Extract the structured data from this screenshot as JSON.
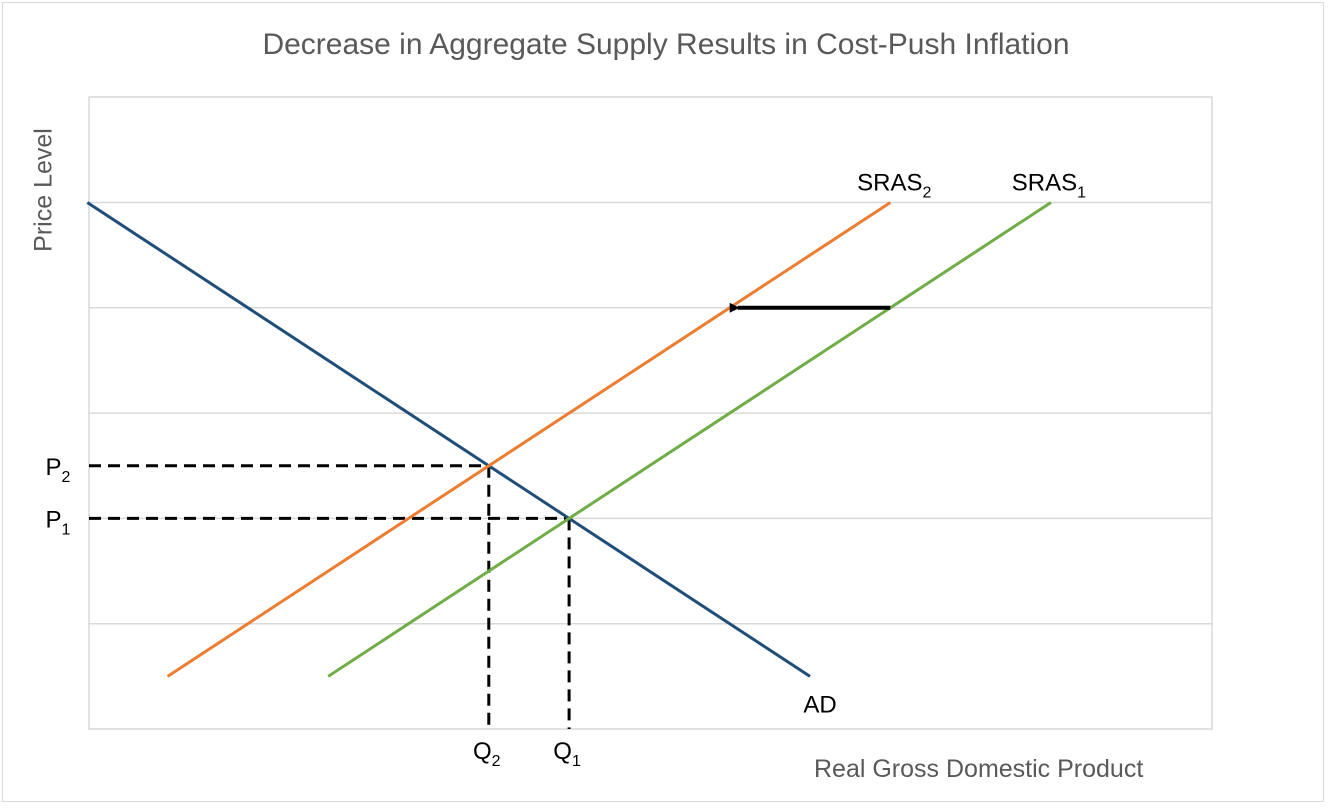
{
  "title": "Decrease in Aggregate Supply Results in Cost-Push Inflation",
  "x_axis_title": "Real Gross Domestic Product",
  "y_axis_title": "Price Level",
  "colors": {
    "ad": "#1f4e79",
    "sras1": "#70ad47",
    "sras2": "#ed7d31",
    "gridline": "#d9d9d9",
    "guide": "#000000",
    "arrow": "#000000",
    "text": "#595959"
  },
  "chart_data": {
    "type": "line",
    "title": "Decrease in Aggregate Supply Results in Cost-Push Inflation",
    "xlabel": "Real Gross Domestic Product",
    "ylabel": "Price Level",
    "xlim": [
      0,
      14
    ],
    "ylim": [
      0,
      6
    ],
    "grid": true,
    "gridlines_y": [
      1,
      2,
      3,
      4,
      5
    ],
    "series": [
      {
        "key": "ad",
        "name": "AD",
        "x": [
          1,
          10
        ],
        "y": [
          5,
          0.5
        ]
      },
      {
        "key": "sras1",
        "name": "SRAS1",
        "x": [
          4,
          13
        ],
        "y": [
          0.5,
          5
        ]
      },
      {
        "key": "sras2",
        "name": "SRAS2",
        "x": [
          2,
          11
        ],
        "y": [
          0.5,
          5
        ]
      }
    ],
    "equilibria": [
      {
        "label": "P1",
        "label_main": "P",
        "label_sub": "1",
        "q_label": "Q1",
        "q_main": "Q",
        "q_sub": "1",
        "x": 7,
        "y": 2
      },
      {
        "label": "P2",
        "label_main": "P",
        "label_sub": "2",
        "q_label": "Q2",
        "q_main": "Q",
        "q_sub": "2",
        "x": 6,
        "y": 2.5
      }
    ],
    "shift_arrow": {
      "from": [
        11,
        4
      ],
      "to": [
        9,
        4
      ]
    },
    "curve_labels": [
      {
        "key": "sras2",
        "main": "SRAS",
        "sub": "2"
      },
      {
        "key": "sras1",
        "main": "SRAS",
        "sub": "1"
      },
      {
        "key": "ad",
        "main": "AD",
        "sub": ""
      }
    ]
  }
}
